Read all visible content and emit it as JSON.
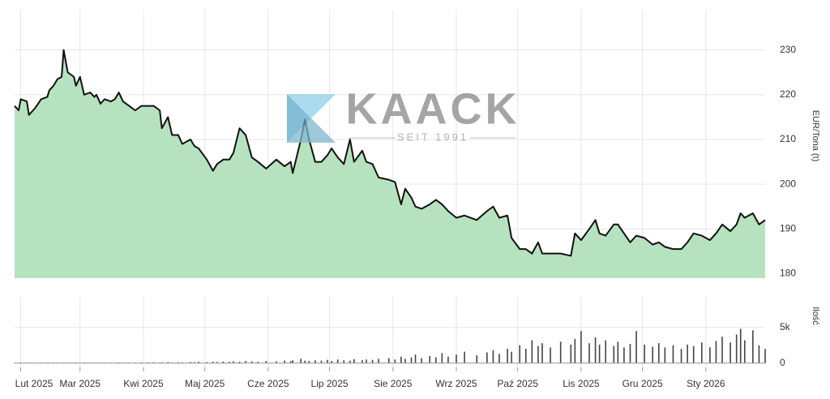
{
  "watermark": {
    "brand": "KAACK",
    "since": "SEIT 1991"
  },
  "chart_data": [
    {
      "type": "area",
      "y_label": "EUR/Tona (t)",
      "color": "#b7e2bf",
      "line_color": "#111111",
      "xlim": [
        0,
        367
      ],
      "ylim": [
        179,
        239
      ],
      "yticks": [
        180,
        190,
        200,
        210,
        220,
        230
      ],
      "grid": true,
      "x": [
        0,
        2,
        3,
        6,
        7,
        10,
        13,
        16,
        17,
        19,
        21,
        23,
        24,
        26,
        29,
        30,
        32,
        34,
        37,
        39,
        40,
        42,
        44,
        47,
        49,
        51,
        53,
        56,
        59,
        62,
        65,
        68,
        71,
        72,
        75,
        77,
        80,
        82,
        86,
        88,
        90,
        94,
        97,
        99,
        102,
        105,
        107,
        110,
        113,
        116,
        119,
        123,
        128,
        132,
        135,
        136,
        140,
        142,
        144,
        147,
        150,
        153,
        155,
        158,
        161,
        164,
        166,
        170,
        172,
        175,
        178,
        183,
        186,
        189,
        191,
        194,
        196,
        199,
        203,
        206,
        209,
        212,
        216,
        220,
        226,
        231,
        234,
        237,
        241,
        243,
        247,
        250,
        253,
        256,
        258,
        262,
        267,
        272,
        274,
        277,
        281,
        284,
        286,
        289,
        293,
        295,
        298,
        301,
        304,
        308,
        312,
        315,
        318,
        322,
        326,
        329,
        332,
        336,
        340,
        343,
        346,
        350,
        353,
        355,
        357,
        361,
        364,
        367
      ],
      "values": [
        217.5,
        216.5,
        219,
        218.5,
        215.5,
        217,
        219,
        219.5,
        221,
        222,
        223.5,
        224,
        230,
        225,
        224,
        222,
        224,
        220,
        220.5,
        219.5,
        220,
        218,
        219,
        218.5,
        219,
        220.5,
        218.5,
        217.5,
        216.5,
        217.5,
        217.5,
        217.5,
        216.5,
        212.5,
        215,
        211,
        211,
        209,
        210,
        208.5,
        208,
        205.5,
        203,
        204.5,
        205.5,
        205.5,
        207,
        212.5,
        211,
        206,
        205,
        203.5,
        205.5,
        204,
        205,
        202.5,
        210,
        214.5,
        210,
        205,
        205,
        206.5,
        208,
        206,
        204.5,
        210,
        205,
        207.5,
        205,
        204.5,
        201.5,
        201,
        200.5,
        195.5,
        199,
        197,
        195,
        194.5,
        195.5,
        196.5,
        195.5,
        194,
        192.5,
        193,
        192,
        194,
        195,
        192.5,
        193,
        188,
        185.5,
        185.5,
        184.5,
        187,
        184.5,
        184.5,
        184.5,
        184,
        189,
        187.5,
        190,
        192,
        189,
        188.5,
        191,
        191,
        189,
        187,
        188.5,
        188,
        186.5,
        187,
        186,
        185.5,
        185.5,
        187,
        189,
        188.5,
        187.5,
        189,
        191,
        189.5,
        191,
        193.5,
        192.5,
        193.5,
        191,
        192
      ]
    },
    {
      "type": "bar",
      "y_label": "Ilość",
      "color": "#444444",
      "xlim": [
        0,
        367
      ],
      "ylim": [
        -600,
        9300
      ],
      "yticks": [
        0,
        {
          "value": 5000,
          "label": "5k"
        }
      ],
      "grid": true,
      "xticks": [
        {
          "value": 3,
          "label": "Lut 2025"
        },
        {
          "value": 32,
          "label": "Mar 2025"
        },
        {
          "value": 63,
          "label": "Kwi 2025"
        },
        {
          "value": 93,
          "label": "Maj 2025"
        },
        {
          "value": 124,
          "label": "Cze 2025"
        },
        {
          "value": 154,
          "label": "Lip 2025"
        },
        {
          "value": 185,
          "label": "Sie 2025"
        },
        {
          "value": 216,
          "label": "Wrz 2025"
        },
        {
          "value": 246,
          "label": "Paź 2025"
        },
        {
          "value": 277,
          "label": "Lis 2025"
        },
        {
          "value": 307,
          "label": "Gru 2025"
        },
        {
          "value": 338,
          "label": "Sty 2026"
        }
      ],
      "x": [
        0,
        2,
        3,
        6,
        7,
        10,
        13,
        16,
        17,
        19,
        21,
        23,
        24,
        26,
        29,
        30,
        32,
        34,
        37,
        39,
        40,
        42,
        44,
        47,
        49,
        51,
        53,
        56,
        59,
        62,
        65,
        68,
        71,
        72,
        75,
        77,
        80,
        82,
        86,
        88,
        90,
        94,
        97,
        99,
        102,
        105,
        107,
        110,
        113,
        116,
        119,
        123,
        128,
        132,
        135,
        136,
        140,
        142,
        144,
        147,
        150,
        153,
        155,
        158,
        161,
        164,
        166,
        170,
        172,
        175,
        178,
        183,
        186,
        189,
        191,
        194,
        196,
        199,
        203,
        206,
        209,
        212,
        216,
        220,
        226,
        231,
        234,
        237,
        241,
        243,
        247,
        250,
        253,
        256,
        258,
        262,
        267,
        272,
        274,
        277,
        281,
        284,
        286,
        289,
        293,
        295,
        298,
        301,
        304,
        308,
        312,
        315,
        318,
        322,
        326,
        329,
        332,
        336,
        340,
        343,
        346,
        350,
        353,
        355,
        357,
        361,
        364,
        367
      ],
      "values": [
        50,
        40,
        60,
        30,
        50,
        40,
        60,
        50,
        40,
        80,
        60,
        50,
        90,
        70,
        50,
        60,
        40,
        80,
        60,
        50,
        70,
        60,
        50,
        80,
        60,
        90,
        70,
        60,
        80,
        100,
        90,
        120,
        80,
        100,
        150,
        90,
        120,
        100,
        150,
        130,
        180,
        150,
        200,
        160,
        220,
        180,
        250,
        200,
        300,
        250,
        200,
        300,
        250,
        350,
        280,
        400,
        600,
        350,
        300,
        400,
        350,
        450,
        300,
        500,
        400,
        350,
        550,
        400,
        500,
        450,
        600,
        700,
        500,
        900,
        600,
        800,
        1200,
        700,
        1000,
        800,
        1400,
        900,
        1200,
        1600,
        1100,
        1500,
        1800,
        1300,
        2000,
        1600,
        2500,
        2000,
        3200,
        2400,
        2800,
        2200,
        3000,
        2600,
        3400,
        4500,
        2800,
        3600,
        2600,
        3200,
        2400,
        3000,
        2200,
        2700,
        4500,
        2600,
        2300,
        2800,
        2200,
        2500,
        2000,
        2600,
        2400,
        2900,
        2200,
        3100,
        3700,
        2900,
        4000,
        4800,
        3200,
        4600,
        2500,
        2000
      ]
    }
  ]
}
